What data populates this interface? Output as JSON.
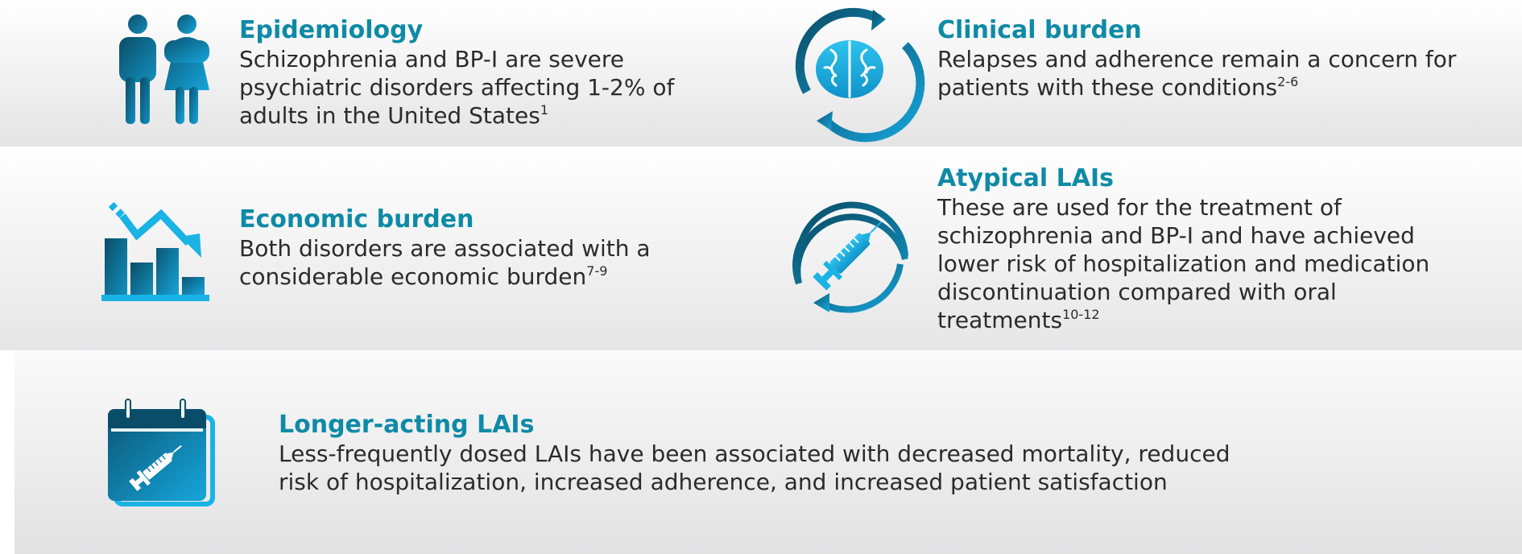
{
  "colors": {
    "title": "#0e8aa6",
    "body_text": "#2b2b2b",
    "icon_dark": "#0a5a73",
    "icon_light": "#19b3e6"
  },
  "cards": {
    "epidemiology": {
      "icon": "people-icon",
      "title": "Epidemiology",
      "lines": [
        "Schizophrenia and BP-I are severe",
        "psychiatric disorders affecting 1-2% of",
        "adults in the United States"
      ],
      "ref": "1"
    },
    "clinical": {
      "icon": "brain-cycle-icon",
      "title": "Clinical burden",
      "lines": [
        "Relapses and adherence remain a concern for",
        "patients with these conditions"
      ],
      "ref": "2-6"
    },
    "economic": {
      "icon": "declining-bar-chart-icon",
      "title": "Economic burden",
      "lines": [
        "Both disorders are associated with a",
        "considerable economic burden"
      ],
      "ref": "7-9"
    },
    "atypical": {
      "icon": "syringe-cycle-icon",
      "title": "Atypical LAIs",
      "lines": [
        "These are used for the treatment of",
        "schizophrenia and BP-I and have achieved",
        "lower risk of hospitalization and medication",
        "discontinuation compared with oral",
        "treatments"
      ],
      "ref": "10-12"
    },
    "longer": {
      "icon": "calendar-syringe-icon",
      "title": "Longer-acting LAIs",
      "lines": [
        "Less-frequently dosed LAIs have been associated with decreased mortality, reduced",
        "risk of hospitalization, increased adherence, and increased patient satisfaction"
      ]
    }
  }
}
